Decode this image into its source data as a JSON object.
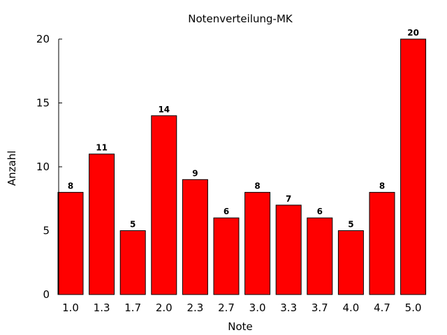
{
  "chart_data": {
    "type": "bar",
    "title": "Notenverteilung-MK",
    "xlabel": "Note",
    "ylabel": "Anzahl",
    "categories": [
      "1.0",
      "1.3",
      "1.7",
      "2.0",
      "2.3",
      "2.7",
      "3.0",
      "3.3",
      "3.7",
      "4.0",
      "4.7",
      "5.0"
    ],
    "values": [
      8,
      11,
      5,
      14,
      9,
      6,
      8,
      7,
      6,
      5,
      8,
      20
    ],
    "ylim": [
      0,
      20
    ],
    "yticks": [
      0,
      5,
      10,
      15,
      20
    ],
    "bar_color": "#ff0000",
    "data_labels": true,
    "grid": false,
    "legend": "none"
  }
}
